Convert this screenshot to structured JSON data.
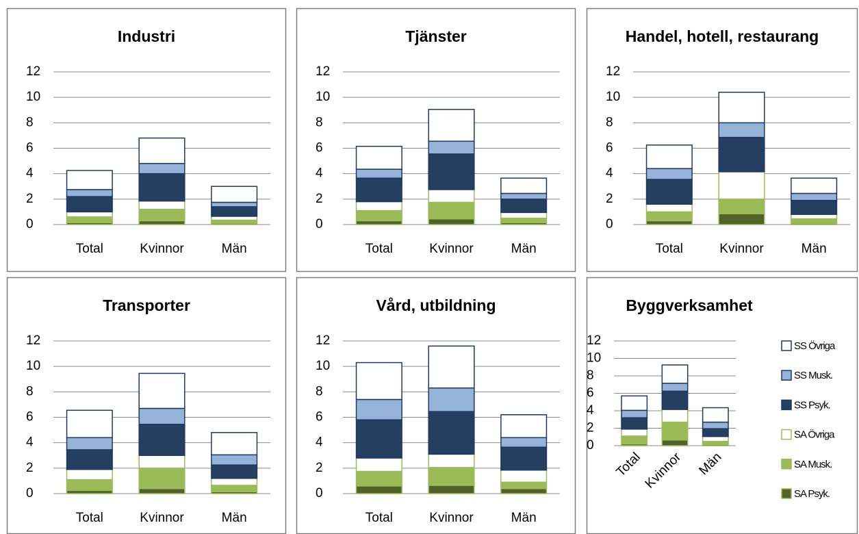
{
  "chart_data": [
    {
      "type": "bar",
      "stacked": true,
      "title": "Industri",
      "categories": [
        "Total",
        "Kvinnor",
        "Män"
      ],
      "series": [
        {
          "color": "#4f6228",
          "edgecolor": "#9bbb59",
          "values": [
            0.15,
            0.3,
            0.1
          ]
        },
        {
          "color": "#9bbb59",
          "edgecolor": "#9bbb59",
          "values": [
            0.45,
            0.9,
            0.25
          ]
        },
        {
          "color": "#ffffff",
          "edgecolor": "#9bbb59",
          "values": [
            0.4,
            0.65,
            0.3
          ]
        },
        {
          "color": "#243f60",
          "edgecolor": "#1f3864",
          "values": [
            1.2,
            2.15,
            0.75
          ]
        },
        {
          "color": "#95b3d7",
          "edgecolor": "#1f3864",
          "values": [
            0.55,
            0.8,
            0.35
          ]
        },
        {
          "color": "#ffffff",
          "edgecolor": "#1f3864",
          "values": [
            1.5,
            2.0,
            1.25
          ]
        }
      ],
      "ylim": [
        0,
        12
      ],
      "yticks": [
        0,
        2,
        4,
        6,
        8,
        10,
        12
      ],
      "grid": true
    },
    {
      "type": "bar",
      "stacked": true,
      "title": "Tjänster",
      "categories": [
        "Total",
        "Kvinnor",
        "Män"
      ],
      "series": [
        {
          "color": "#4f6228",
          "edgecolor": "#9bbb59",
          "values": [
            0.3,
            0.45,
            0.15
          ]
        },
        {
          "color": "#9bbb59",
          "edgecolor": "#9bbb59",
          "values": [
            0.8,
            1.3,
            0.35
          ]
        },
        {
          "color": "#ffffff",
          "edgecolor": "#9bbb59",
          "values": [
            0.7,
            1.0,
            0.45
          ]
        },
        {
          "color": "#243f60",
          "edgecolor": "#1f3864",
          "values": [
            1.85,
            2.8,
            1.05
          ]
        },
        {
          "color": "#95b3d7",
          "edgecolor": "#1f3864",
          "values": [
            0.7,
            1.0,
            0.45
          ]
        },
        {
          "color": "#ffffff",
          "edgecolor": "#1f3864",
          "values": [
            1.8,
            2.5,
            1.2
          ]
        }
      ],
      "ylim": [
        0,
        12
      ],
      "yticks": [
        0,
        2,
        4,
        6,
        8,
        10,
        12
      ],
      "grid": true
    },
    {
      "type": "bar",
      "stacked": true,
      "title": "Handel, hotell, restaurang",
      "categories": [
        "Total",
        "Kvinnor",
        "Män"
      ],
      "series": [
        {
          "color": "#4f6228",
          "edgecolor": "#9bbb59",
          "values": [
            0.3,
            0.85,
            0.1
          ]
        },
        {
          "color": "#9bbb59",
          "edgecolor": "#9bbb59",
          "values": [
            0.7,
            1.15,
            0.35
          ]
        },
        {
          "color": "#ffffff",
          "edgecolor": "#9bbb59",
          "values": [
            0.6,
            2.15,
            0.35
          ]
        },
        {
          "color": "#243f60",
          "edgecolor": "#1f3864",
          "values": [
            1.95,
            2.7,
            1.1
          ]
        },
        {
          "color": "#95b3d7",
          "edgecolor": "#1f3864",
          "values": [
            0.85,
            1.15,
            0.55
          ]
        },
        {
          "color": "#ffffff",
          "edgecolor": "#1f3864",
          "values": [
            1.85,
            2.4,
            1.2
          ]
        }
      ],
      "ylim": [
        0,
        12
      ],
      "yticks": [
        0,
        2,
        4,
        6,
        8,
        10,
        12
      ],
      "grid": true
    },
    {
      "type": "bar",
      "stacked": true,
      "title": "Transporter",
      "categories": [
        "Total",
        "Kvinnor",
        "Män"
      ],
      "series": [
        {
          "color": "#4f6228",
          "edgecolor": "#9bbb59",
          "values": [
            0.25,
            0.4,
            0.15
          ]
        },
        {
          "color": "#9bbb59",
          "edgecolor": "#9bbb59",
          "values": [
            0.85,
            1.6,
            0.5
          ]
        },
        {
          "color": "#ffffff",
          "edgecolor": "#9bbb59",
          "values": [
            0.8,
            1.0,
            0.55
          ]
        },
        {
          "color": "#243f60",
          "edgecolor": "#1f3864",
          "values": [
            1.55,
            2.45,
            1.05
          ]
        },
        {
          "color": "#95b3d7",
          "edgecolor": "#1f3864",
          "values": [
            0.95,
            1.25,
            0.8
          ]
        },
        {
          "color": "#ffffff",
          "edgecolor": "#1f3864",
          "values": [
            2.15,
            2.75,
            1.75
          ]
        }
      ],
      "ylim": [
        0,
        12
      ],
      "yticks": [
        0,
        2,
        4,
        6,
        8,
        10,
        12
      ],
      "grid": true
    },
    {
      "type": "bar",
      "stacked": true,
      "title": "Vård, utbildning",
      "categories": [
        "Total",
        "Kvinnor",
        "Män"
      ],
      "series": [
        {
          "color": "#4f6228",
          "edgecolor": "#9bbb59",
          "values": [
            0.6,
            0.65,
            0.4
          ]
        },
        {
          "color": "#9bbb59",
          "edgecolor": "#9bbb59",
          "values": [
            1.15,
            1.4,
            0.5
          ]
        },
        {
          "color": "#ffffff",
          "edgecolor": "#9bbb59",
          "values": [
            1.05,
            1.05,
            0.95
          ]
        },
        {
          "color": "#243f60",
          "edgecolor": "#1f3864",
          "values": [
            3.0,
            3.35,
            1.8
          ]
        },
        {
          "color": "#95b3d7",
          "edgecolor": "#1f3864",
          "values": [
            1.6,
            1.85,
            0.75
          ]
        },
        {
          "color": "#ffffff",
          "edgecolor": "#1f3864",
          "values": [
            2.9,
            3.3,
            1.8
          ]
        }
      ],
      "ylim": [
        0,
        12
      ],
      "yticks": [
        0,
        2,
        4,
        6,
        8,
        10,
        12
      ],
      "grid": true
    },
    {
      "type": "bar",
      "stacked": true,
      "title": "Byggverksamhet",
      "categories": [
        "Total",
        "Kvinnor",
        "Män"
      ],
      "series": [
        {
          "name": "SA Psyk.",
          "color": "#4f6228",
          "edgecolor": "#9bbb59",
          "values": [
            0.2,
            0.65,
            0.15
          ]
        },
        {
          "name": "SA Musk.",
          "color": "#9bbb59",
          "edgecolor": "#9bbb59",
          "values": [
            0.9,
            2.05,
            0.35
          ]
        },
        {
          "name": "SA Övriga",
          "color": "#ffffff",
          "edgecolor": "#9bbb59",
          "values": [
            0.8,
            1.45,
            0.55
          ]
        },
        {
          "name": "SS Psyk.",
          "color": "#243f60",
          "edgecolor": "#1f3864",
          "values": [
            1.3,
            2.1,
            0.9
          ]
        },
        {
          "name": "SS Musk.",
          "color": "#95b3d7",
          "edgecolor": "#1f3864",
          "values": [
            0.85,
            0.9,
            0.75
          ]
        },
        {
          "name": "SS Övriga",
          "color": "#ffffff",
          "edgecolor": "#1f3864",
          "values": [
            1.65,
            2.1,
            1.65
          ]
        }
      ],
      "ylim": [
        0,
        12
      ],
      "yticks": [
        0,
        2,
        4,
        6,
        8,
        10,
        12
      ],
      "grid": true,
      "legend": "right",
      "xlabel_rotation": -45
    }
  ]
}
